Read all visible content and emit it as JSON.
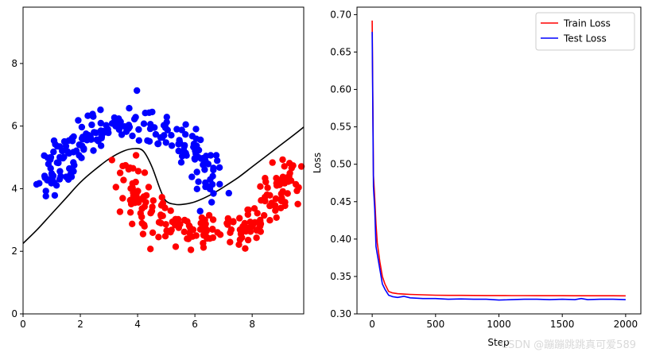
{
  "chart_data": [
    {
      "type": "scatter",
      "xlim": [
        0,
        9.8
      ],
      "ylim": [
        0,
        9.8
      ],
      "xticks": [
        0,
        2,
        4,
        6,
        8
      ],
      "yticks": [
        0,
        2,
        4,
        6,
        8
      ],
      "grid": false,
      "colors": {
        "class_a": "#0000ff",
        "class_b": "#ff0000",
        "boundary": "#000000"
      },
      "boundary": {
        "x": [
          0,
          0.5,
          1,
          1.5,
          2,
          2.5,
          3,
          3.5,
          3.9,
          4.2,
          4.5,
          4.8,
          5.0,
          5.3,
          5.6,
          6.0,
          6.5,
          7.0,
          7.5,
          8.0,
          8.5,
          9.0,
          9.5,
          9.8
        ],
        "y": [
          2.25,
          2.7,
          3.2,
          3.7,
          4.2,
          4.6,
          4.95,
          5.2,
          5.28,
          5.2,
          4.7,
          3.95,
          3.6,
          3.5,
          3.5,
          3.58,
          3.78,
          4.05,
          4.35,
          4.7,
          5.05,
          5.4,
          5.75,
          5.97
        ]
      }
    },
    {
      "type": "line",
      "xlabel": "Step",
      "ylabel": "Loss",
      "xlim": [
        -120,
        2120
      ],
      "ylim": [
        0.3,
        0.71
      ],
      "xticks": [
        0,
        500,
        1000,
        1500,
        2000
      ],
      "yticks": [
        0.3,
        0.35,
        0.4,
        0.45,
        0.5,
        0.55,
        0.6,
        0.65,
        0.7
      ],
      "grid": false,
      "legend": "top-right",
      "series": [
        {
          "name": "Train Loss",
          "color": "#ff0000",
          "x": [
            0,
            10,
            20,
            30,
            40,
            60,
            80,
            100,
            130,
            160,
            200,
            250,
            300,
            400,
            500,
            600,
            700,
            800,
            900,
            1000,
            1100,
            1200,
            1300,
            1400,
            1500,
            1600,
            1700,
            1800,
            1900,
            2000
          ],
          "y": [
            0.692,
            0.485,
            0.455,
            0.42,
            0.395,
            0.37,
            0.35,
            0.34,
            0.33,
            0.328,
            0.327,
            0.3265,
            0.326,
            0.3255,
            0.325,
            0.3248,
            0.3247,
            0.3246,
            0.3245,
            0.3245,
            0.3244,
            0.3244,
            0.3243,
            0.3243,
            0.3243,
            0.3242,
            0.3242,
            0.3242,
            0.3242,
            0.3241
          ]
        },
        {
          "name": "Test Loss",
          "color": "#0000ff",
          "x": [
            0,
            10,
            20,
            30,
            40,
            60,
            80,
            100,
            130,
            160,
            200,
            250,
            300,
            400,
            500,
            600,
            700,
            800,
            900,
            1000,
            1100,
            1200,
            1300,
            1400,
            1500,
            1600,
            1650,
            1700,
            1800,
            1900,
            2000
          ],
          "y": [
            0.677,
            0.47,
            0.44,
            0.39,
            0.38,
            0.36,
            0.34,
            0.333,
            0.325,
            0.323,
            0.322,
            0.3235,
            0.3215,
            0.3205,
            0.3205,
            0.3195,
            0.32,
            0.3195,
            0.3195,
            0.3185,
            0.319,
            0.3195,
            0.3195,
            0.319,
            0.3195,
            0.319,
            0.3205,
            0.319,
            0.3195,
            0.3195,
            0.319
          ]
        }
      ]
    }
  ],
  "watermark": "CSDN @蹦蹦跳跳真可爱589"
}
